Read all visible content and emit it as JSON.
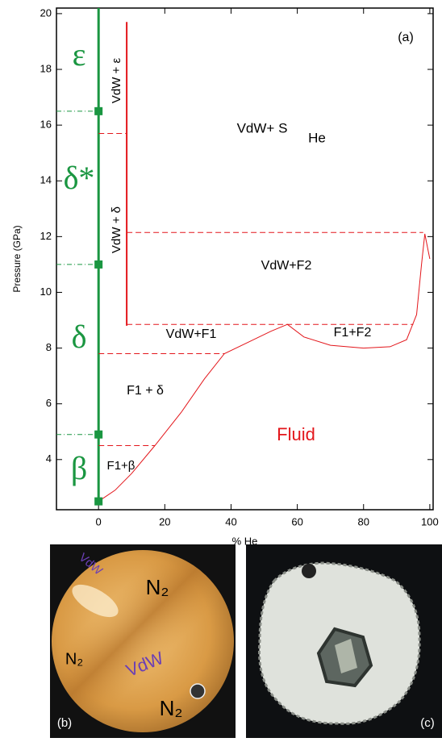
{
  "chart_data": {
    "type": "phase-diagram",
    "x_label": "% He",
    "y_label": "Pressure (GPa)",
    "xlim": [
      -12.7,
      101
    ],
    "ylim": [
      2.2,
      20.2
    ],
    "xticks": [
      0,
      20,
      40,
      60,
      80,
      100
    ],
    "yticks": [
      4,
      6,
      8,
      10,
      12,
      14,
      16,
      18,
      20
    ],
    "series": [
      {
        "color": "#1a9641",
        "style": "solid",
        "width": 3,
        "x": [
          0,
          0
        ],
        "values": [
          2.5,
          20.2
        ]
      },
      {
        "color": "#1a9641",
        "style": "dashdot",
        "width": 1,
        "x": [
          -12.7,
          0
        ],
        "values": [
          16.5,
          16.5
        ]
      },
      {
        "color": "#1a9641",
        "style": "dashdot",
        "width": 1,
        "x": [
          -12.7,
          0
        ],
        "values": [
          11.0,
          11.0
        ]
      },
      {
        "color": "#1a9641",
        "style": "dashdot",
        "width": 1,
        "x": [
          -12.7,
          0
        ],
        "values": [
          4.9,
          4.9
        ]
      },
      {
        "color": "#e3161b",
        "style": "solid",
        "width": 2,
        "x": [
          8.5,
          8.5
        ],
        "values": [
          8.8,
          19.7
        ]
      },
      {
        "color": "#e3161b",
        "style": "dashed",
        "width": 1,
        "x": [
          0,
          8.5
        ],
        "values": [
          15.7,
          15.7
        ]
      },
      {
        "color": "#e3161b",
        "style": "dashed",
        "width": 1,
        "x": [
          8.5,
          98
        ],
        "values": [
          12.15,
          12.15
        ]
      },
      {
        "color": "#e3161b",
        "style": "dashed",
        "width": 1,
        "x": [
          8.5,
          95
        ],
        "values": [
          8.85,
          8.85
        ]
      },
      {
        "color": "#e3161b",
        "style": "dashed",
        "width": 1,
        "x": [
          0,
          38
        ],
        "values": [
          7.8,
          7.8
        ]
      },
      {
        "color": "#e3161b",
        "style": "dashed",
        "width": 1,
        "x": [
          0,
          17
        ],
        "values": [
          4.5,
          4.5
        ]
      },
      {
        "color": "#e3161b",
        "style": "solid",
        "width": 1,
        "x": [
          0,
          5,
          10,
          17,
          25,
          32,
          38,
          45,
          52,
          57,
          62,
          70,
          80,
          88,
          93,
          96,
          97.5,
          98.5,
          99.5,
          100
        ],
        "values": [
          2.5,
          2.9,
          3.5,
          4.5,
          5.7,
          6.9,
          7.8,
          8.2,
          8.6,
          8.85,
          8.4,
          8.1,
          8.0,
          8.05,
          8.3,
          9.2,
          11.0,
          12.1,
          11.5,
          11.2
        ]
      }
    ],
    "markers": {
      "color": "#1a9641",
      "x": [
        0,
        0,
        0,
        0
      ],
      "values": [
        16.5,
        11.0,
        4.9,
        2.5
      ]
    },
    "annotations": [
      {
        "text": "(a)",
        "color": "#000000"
      },
      {
        "text": "ε",
        "color": "#1a9641"
      },
      {
        "text": "δ*",
        "color": "#1a9641"
      },
      {
        "text": "δ",
        "color": "#1a9641"
      },
      {
        "text": "β",
        "color": "#1a9641"
      },
      {
        "text": "VdW + ε",
        "color": "#000000"
      },
      {
        "text": "VdW+ S",
        "color": "#000000"
      },
      {
        "text": "He",
        "color": "#000000"
      },
      {
        "text": "VdW + δ",
        "color": "#000000"
      },
      {
        "text": "VdW+F2",
        "color": "#000000"
      },
      {
        "text": "VdW+F1",
        "color": "#000000"
      },
      {
        "text": "F1+F2",
        "color": "#000000"
      },
      {
        "text": "F1 + δ",
        "color": "#000000"
      },
      {
        "text": "Fluid",
        "color": "#e3161b"
      },
      {
        "text": "F1+β",
        "color": "#000000"
      }
    ]
  },
  "photos": {
    "b": {
      "labels": [
        "N₂",
        "VdW",
        "N₂",
        "VdW",
        "N₂",
        "(b)"
      ]
    },
    "c": {
      "labels": [
        "(c)"
      ]
    }
  }
}
